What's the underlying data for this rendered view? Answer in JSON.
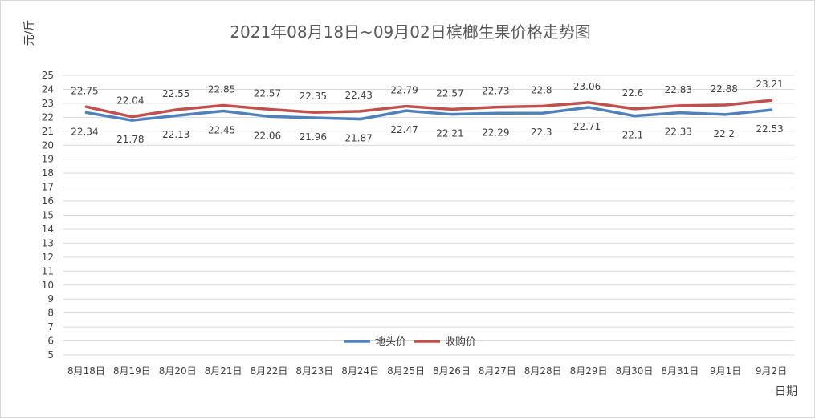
{
  "chart_data": {
    "type": "line",
    "title": "2021年08月18日~09月02日槟榔生果价格走势图",
    "ylabel": "元/斤",
    "xlabel": "日期",
    "categories": [
      "8月18日",
      "8月19日",
      "8月20日",
      "8月21日",
      "8月22日",
      "8月23日",
      "8月24日",
      "8月25日",
      "8月26日",
      "8月27日",
      "8月28日",
      "8月29日",
      "8月30日",
      "8月31日",
      "9月1日",
      "9月2日"
    ],
    "series": [
      {
        "name": "地头价",
        "color": "#4f81bd",
        "values": [
          22.34,
          21.78,
          22.13,
          22.45,
          22.06,
          21.96,
          21.87,
          22.47,
          22.21,
          22.29,
          22.3,
          22.71,
          22.1,
          22.33,
          22.2,
          22.53
        ],
        "labels": [
          "22.34",
          "21.78",
          "22.13",
          "22.45",
          "22.06",
          "21.96",
          "21.87",
          "22.47",
          "22.21",
          "22.29",
          "22.3",
          "22.71",
          "22.1",
          "22.33",
          "22.2",
          "22.53"
        ]
      },
      {
        "name": "收购价",
        "color": "#c0504d",
        "values": [
          22.75,
          22.04,
          22.55,
          22.85,
          22.57,
          22.35,
          22.43,
          22.79,
          22.57,
          22.73,
          22.8,
          23.06,
          22.6,
          22.83,
          22.88,
          23.21
        ],
        "labels": [
          "22.75",
          "22.04",
          "22.55",
          "22.85",
          "22.57",
          "22.35",
          "22.43",
          "22.79",
          "22.57",
          "22.73",
          "22.8",
          "23.06",
          "22.6",
          "22.83",
          "22.88",
          "23.21"
        ]
      }
    ],
    "ylim": [
      5,
      25
    ],
    "yticks": [
      "5",
      "6",
      "7",
      "8",
      "9",
      "10",
      "11",
      "12",
      "13",
      "14",
      "15",
      "16",
      "17",
      "18",
      "19",
      "20",
      "21",
      "22",
      "23",
      "24",
      "25"
    ],
    "grid": true,
    "legend_position": "bottom-center"
  }
}
